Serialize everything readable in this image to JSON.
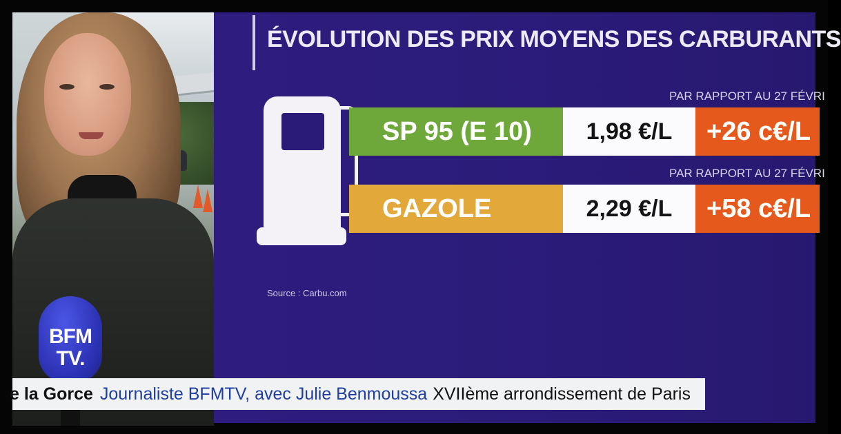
{
  "colors": {
    "panel_bg": "#2b1b79",
    "sp95_bar": "#6fa83a",
    "gazole_bar": "#e2a93a",
    "delta_bar": "#e55a1c",
    "lower_third_role": "#1e3ea0"
  },
  "graphic": {
    "title": "ÉVOLUTION DES PRIX MOYENS DES CARBURANTS",
    "icon": "fuel-pump-icon",
    "rows": [
      {
        "note": "PAR RAPPORT AU 27 FÉVRI",
        "fuel": "SP 95 (E 10)",
        "price": "1,98 €/L",
        "delta": "+26 c€/L"
      },
      {
        "note": "PAR RAPPORT AU 27 FÉVRI",
        "fuel": "GAZOLE",
        "price": "2,29 €/L",
        "delta": "+58 c€/L"
      }
    ],
    "source": "Source : Carbu.com"
  },
  "microphone": {
    "line1": "BFM",
    "line2": "TV."
  },
  "lower_third": {
    "name": "e la Gorce",
    "role": "Journaliste BFMTV, avec Julie Benmoussa",
    "place": "XVIIème arrondissement de Paris"
  }
}
